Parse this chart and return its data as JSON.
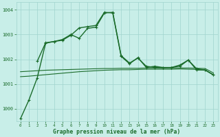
{
  "title": "Graphe pression niveau de la mer (hPa)",
  "bg_color": "#c8eee8",
  "grid_color": "#9fd4ce",
  "line_color": "#1a6b2a",
  "xlim": [
    -0.5,
    23.5
  ],
  "ylim": [
    999.5,
    1004.3
  ],
  "yticks": [
    1000,
    1001,
    1002,
    1003,
    1004
  ],
  "xticks": [
    0,
    1,
    2,
    3,
    4,
    5,
    6,
    7,
    8,
    9,
    10,
    11,
    12,
    13,
    14,
    15,
    16,
    17,
    18,
    19,
    20,
    21,
    22,
    23
  ],
  "series": [
    {
      "x": [
        0,
        1,
        2,
        3,
        4,
        5,
        6,
        7,
        8,
        9,
        10,
        11,
        12,
        13,
        14,
        15,
        16,
        17,
        18,
        19,
        20,
        21,
        22,
        23
      ],
      "y": [
        999.6,
        1000.35,
        1001.25,
        1002.65,
        1002.72,
        1002.8,
        1003.0,
        1002.85,
        1003.25,
        1003.3,
        1003.87,
        1003.9,
        1002.15,
        1001.85,
        1002.05,
        1001.72,
        1001.67,
        1001.65,
        1001.67,
        1001.72,
        1001.97,
        1001.62,
        1001.57,
        1001.37
      ],
      "marker": "+",
      "lw": 1.0
    },
    {
      "x": [
        2,
        3,
        4,
        5,
        6,
        7,
        8,
        9,
        10,
        11,
        12,
        13,
        14,
        15,
        16,
        17,
        18,
        19,
        20,
        21,
        22,
        23
      ],
      "y": [
        1001.92,
        1002.67,
        1002.72,
        1002.77,
        1002.97,
        1003.27,
        1003.32,
        1003.37,
        1003.9,
        1003.87,
        1002.12,
        1001.82,
        1002.07,
        1001.67,
        1001.72,
        1001.67,
        1001.67,
        1001.77,
        1001.97,
        1001.57,
        1001.57,
        1001.37
      ],
      "marker": "+",
      "lw": 1.0
    },
    {
      "x": [
        0,
        1,
        2,
        3,
        4,
        5,
        6,
        7,
        8,
        9,
        10,
        11,
        12,
        13,
        14,
        15,
        16,
        17,
        18,
        19,
        20,
        21,
        22,
        23
      ],
      "y": [
        1001.3,
        1001.32,
        1001.35,
        1001.38,
        1001.41,
        1001.44,
        1001.47,
        1001.5,
        1001.52,
        1001.54,
        1001.56,
        1001.57,
        1001.58,
        1001.58,
        1001.59,
        1001.6,
        1001.6,
        1001.6,
        1001.6,
        1001.61,
        1001.6,
        1001.59,
        1001.57,
        1001.38
      ],
      "marker": null,
      "lw": 0.8
    },
    {
      "x": [
        0,
        1,
        2,
        3,
        4,
        5,
        6,
        7,
        8,
        9,
        10,
        11,
        12,
        13,
        14,
        15,
        16,
        17,
        18,
        19,
        20,
        21,
        22,
        23
      ],
      "y": [
        1001.5,
        1001.52,
        1001.54,
        1001.56,
        1001.57,
        1001.58,
        1001.59,
        1001.6,
        1001.61,
        1001.62,
        1001.63,
        1001.63,
        1001.64,
        1001.64,
        1001.64,
        1001.65,
        1001.65,
        1001.65,
        1001.65,
        1001.65,
        1001.65,
        1001.64,
        1001.63,
        1001.45
      ],
      "marker": null,
      "lw": 0.8
    }
  ]
}
